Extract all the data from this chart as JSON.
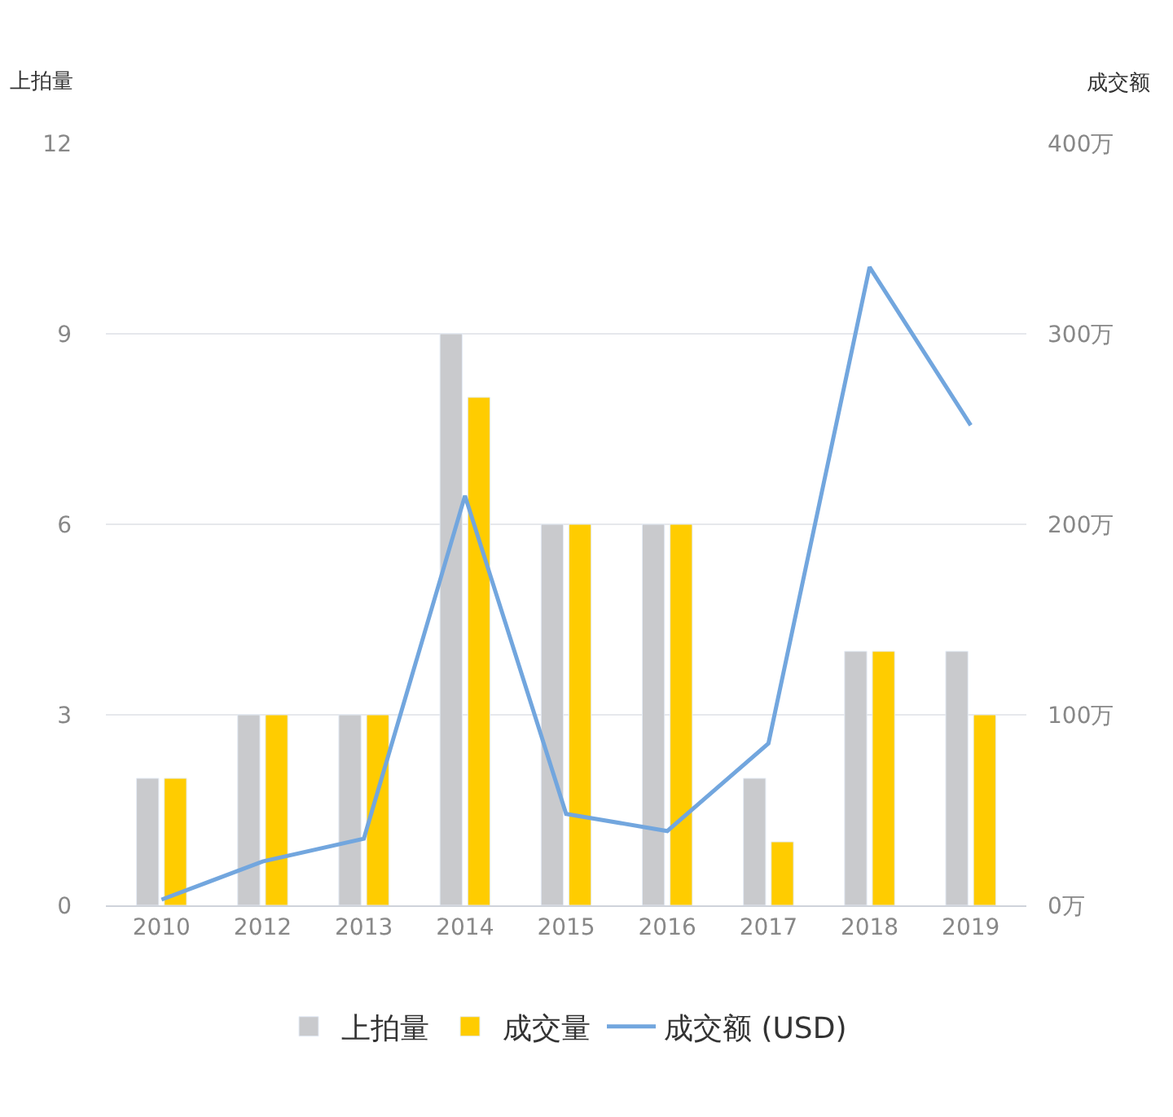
{
  "chart_data": {
    "type": "bar",
    "ylabel": "上拍量",
    "y2label": "成交额",
    "categories": [
      "2010",
      "2012",
      "2013",
      "2014",
      "2015",
      "2016",
      "2017",
      "2018",
      "2019"
    ],
    "series": [
      {
        "name": "上拍量",
        "color": "#c9cacd",
        "values": [
          2,
          3,
          3,
          9,
          6,
          6,
          2,
          4,
          4
        ]
      },
      {
        "name": "成交量",
        "color": "#ffcc00",
        "values": [
          2,
          3,
          3,
          8,
          6,
          6,
          1,
          4,
          3
        ]
      },
      {
        "name": "成交额 (USD)",
        "type": "line",
        "axis": "y2",
        "color": "#72a6de",
        "values": [
          3,
          23,
          35,
          215,
          48,
          39,
          85,
          335,
          252
        ]
      }
    ],
    "ylim": [
      0,
      12
    ],
    "yticks": [
      0,
      3,
      6,
      9,
      12
    ],
    "y2lim": [
      0,
      400
    ],
    "y2ticks": [
      {
        "value": 0,
        "label": "0万"
      },
      {
        "value": 100,
        "label": "100万"
      },
      {
        "value": 200,
        "label": "200万"
      },
      {
        "value": 300,
        "label": "300万"
      },
      {
        "value": 400,
        "label": "400万"
      }
    ],
    "grid": "y",
    "legend": "bottom",
    "marker": "none",
    "line_style": "solid"
  }
}
